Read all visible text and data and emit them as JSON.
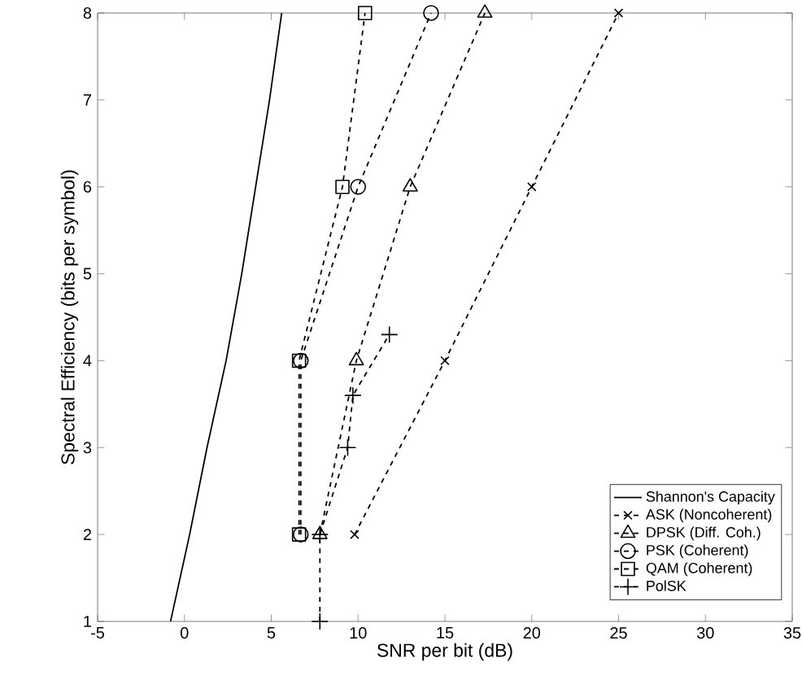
{
  "chart_data": {
    "type": "line",
    "xlabel": "SNR per bit (dB)",
    "ylabel": "Spectral Efficiency (bits per symbol)",
    "xlim": [
      -5,
      35
    ],
    "xticks": [
      -5,
      0,
      5,
      10,
      15,
      20,
      25,
      30,
      35
    ],
    "ylim": [
      1,
      8
    ],
    "yticks": [
      1,
      2,
      3,
      4,
      5,
      6,
      7,
      8
    ],
    "grid": false,
    "legend": "bottom right",
    "series": [
      {
        "name": "Shannon's Capacity",
        "color": "#000000",
        "marker": "none",
        "line_style": "solid",
        "x": [
          -0.8,
          0.3,
          1.3,
          2.4,
          3.3,
          4.1,
          4.9,
          5.6
        ],
        "values": [
          1,
          2,
          3,
          4,
          5,
          6,
          7,
          8
        ]
      },
      {
        "name": "ASK (Noncoherent)",
        "color": "#000000",
        "marker": "cross",
        "line_style": "dashed",
        "x": [
          9.8,
          15,
          20,
          25
        ],
        "values": [
          2,
          4,
          6,
          8
        ]
      },
      {
        "name": "DPSK (Diff. Coh.)",
        "color": "#000000",
        "marker": "triangle",
        "line_style": "dashed",
        "x": [
          7.8,
          9.9,
          13,
          17.3
        ],
        "values": [
          2,
          4,
          6,
          8
        ]
      },
      {
        "name": "PSK (Coherent)",
        "color": "#000000",
        "marker": "circle",
        "line_style": "dashed",
        "x": [
          6.7,
          6.7,
          10,
          14.2
        ],
        "values": [
          2,
          4,
          6,
          8
        ]
      },
      {
        "name": "QAM (Coherent)",
        "color": "#000000",
        "marker": "square",
        "line_style": "dashed",
        "x": [
          6.6,
          6.6,
          9.1,
          10.4
        ],
        "values": [
          2,
          4,
          6,
          8
        ]
      },
      {
        "name": "PolSK",
        "color": "#000000",
        "marker": "plus",
        "line_style": "dashed",
        "x": [
          7.8,
          7.8,
          9.4,
          9.7,
          11.8
        ],
        "values": [
          1,
          2,
          3,
          3.6,
          4.3
        ]
      }
    ]
  }
}
